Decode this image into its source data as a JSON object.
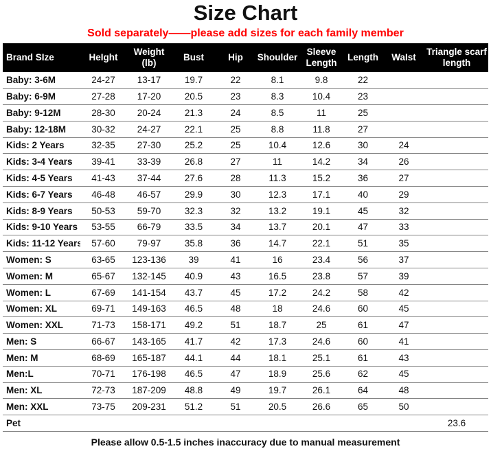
{
  "title": "Size Chart",
  "subtitle": "Sold separately——please add sizes for each family member",
  "footer": "Please allow 0.5-1.5 inches inaccuracy due to manual measurement",
  "colors": {
    "subtitle_red": "#FF0000",
    "header_bg": "#000000",
    "header_text": "#FFFFFF",
    "row_border": "#848484",
    "body_text": "#111111"
  },
  "chart_data": {
    "type": "table",
    "title": "Size Chart",
    "columns": [
      "Brand SIze",
      "HeIght",
      "Weight (lb)",
      "Bust",
      "Hip",
      "Shoulder",
      "Sleeve Length",
      "Length",
      "WaIst",
      "Triangle scarf length"
    ],
    "rows": [
      [
        "Baby: 3-6M",
        "24-27",
        "13-17",
        "19.7",
        "22",
        "8.1",
        "9.8",
        "22",
        "",
        ""
      ],
      [
        "Baby: 6-9M",
        "27-28",
        "17-20",
        "20.5",
        "23",
        "8.3",
        "10.4",
        "23",
        "",
        ""
      ],
      [
        "Baby: 9-12M",
        "28-30",
        "20-24",
        "21.3",
        "24",
        "8.5",
        "11",
        "25",
        "",
        ""
      ],
      [
        "Baby: 12-18M",
        "30-32",
        "24-27",
        "22.1",
        "25",
        "8.8",
        "11.8",
        "27",
        "",
        ""
      ],
      [
        "Kids: 2 Years",
        "32-35",
        "27-30",
        "25.2",
        "25",
        "10.4",
        "12.6",
        "30",
        "24",
        ""
      ],
      [
        "Kids: 3-4 Years",
        "39-41",
        "33-39",
        "26.8",
        "27",
        "11",
        "14.2",
        "34",
        "26",
        ""
      ],
      [
        "Kids: 4-5 Years",
        "41-43",
        "37-44",
        "27.6",
        "28",
        "11.3",
        "15.2",
        "36",
        "27",
        ""
      ],
      [
        "Kids: 6-7 Years",
        "46-48",
        "46-57",
        "29.9",
        "30",
        "12.3",
        "17.1",
        "40",
        "29",
        ""
      ],
      [
        "Kids: 8-9 Years",
        "50-53",
        "59-70",
        "32.3",
        "32",
        "13.2",
        "19.1",
        "45",
        "32",
        ""
      ],
      [
        "Kids: 9-10 Years",
        "53-55",
        "66-79",
        "33.5",
        "34",
        "13.7",
        "20.1",
        "47",
        "33",
        ""
      ],
      [
        "Kids: 11-12 Years",
        "57-60",
        "79-97",
        "35.8",
        "36",
        "14.7",
        "22.1",
        "51",
        "35",
        ""
      ],
      [
        "Women: S",
        "63-65",
        "123-136",
        "39",
        "41",
        "16",
        "23.4",
        "56",
        "37",
        ""
      ],
      [
        "Women: M",
        "65-67",
        "132-145",
        "40.9",
        "43",
        "16.5",
        "23.8",
        "57",
        "39",
        ""
      ],
      [
        "Women: L",
        "67-69",
        "141-154",
        "43.7",
        "45",
        "17.2",
        "24.2",
        "58",
        "42",
        ""
      ],
      [
        "Women: XL",
        "69-71",
        "149-163",
        "46.5",
        "48",
        "18",
        "24.6",
        "60",
        "45",
        ""
      ],
      [
        "Women: XXL",
        "71-73",
        "158-171",
        "49.2",
        "51",
        "18.7",
        "25",
        "61",
        "47",
        ""
      ],
      [
        "Men: S",
        "66-67",
        "143-165",
        "41.7",
        "42",
        "17.3",
        "24.6",
        "60",
        "41",
        ""
      ],
      [
        "Men: M",
        "68-69",
        "165-187",
        "44.1",
        "44",
        "18.1",
        "25.1",
        "61",
        "43",
        ""
      ],
      [
        "Men:L",
        "70-71",
        "176-198",
        "46.5",
        "47",
        "18.9",
        "25.6",
        "62",
        "45",
        ""
      ],
      [
        "Men: XL",
        "72-73",
        "187-209",
        "48.8",
        "49",
        "19.7",
        "26.1",
        "64",
        "48",
        ""
      ],
      [
        "Men: XXL",
        "73-75",
        "209-231",
        "51.2",
        "51",
        "20.5",
        "26.6",
        "65",
        "50",
        ""
      ],
      [
        "Pet",
        "",
        "",
        "",
        "",
        "",
        "",
        "",
        "",
        "23.6"
      ]
    ]
  }
}
